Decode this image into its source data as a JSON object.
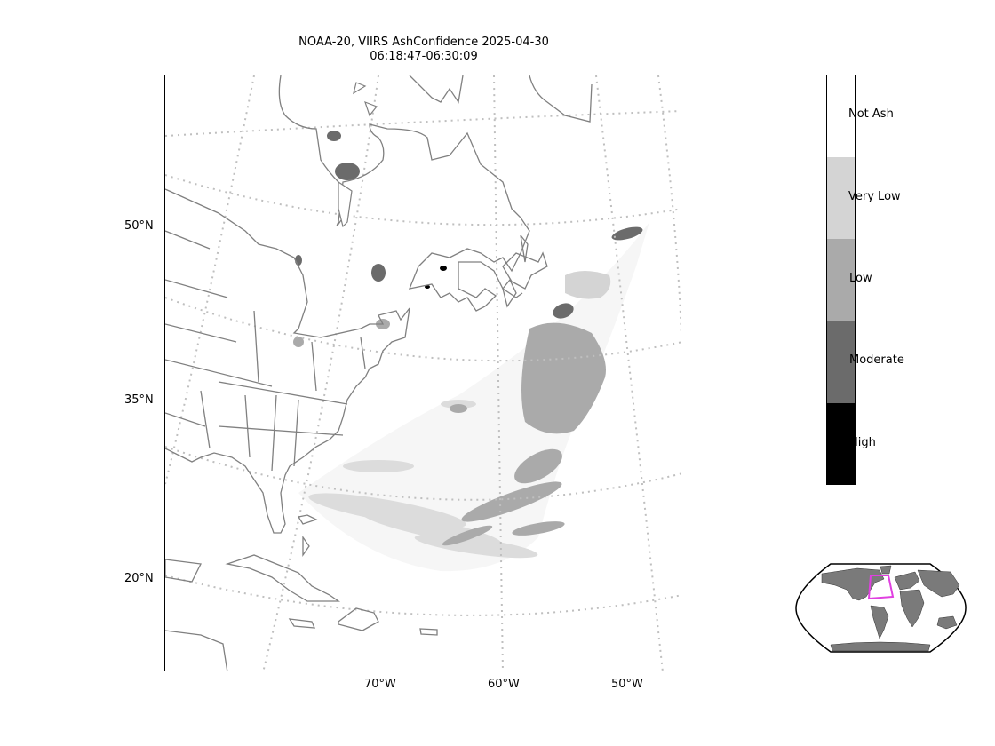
{
  "title": {
    "line1": "NOAA-20, VIIRS AshConfidence 2025-04-30",
    "line2": "06:18:47-06:30:09"
  },
  "lat_labels": [
    "50°N",
    "35°N",
    "20°N"
  ],
  "lon_labels": [
    "70°W",
    "60°W",
    "50°W"
  ],
  "colorbar": {
    "categories": [
      {
        "label": "Not Ash",
        "color": "#ffffff"
      },
      {
        "label": "Very Low",
        "color": "#d4d4d4"
      },
      {
        "label": "Low",
        "color": "#aaaaaa"
      },
      {
        "label": "Moderate",
        "color": "#6b6b6b"
      },
      {
        "label": "High",
        "color": "#000000"
      }
    ]
  },
  "colors": {
    "coastline": "#808080",
    "gridline": "#bfbfbf",
    "inset_box": "#e040e0",
    "inset_land": "#7a7a7a"
  }
}
